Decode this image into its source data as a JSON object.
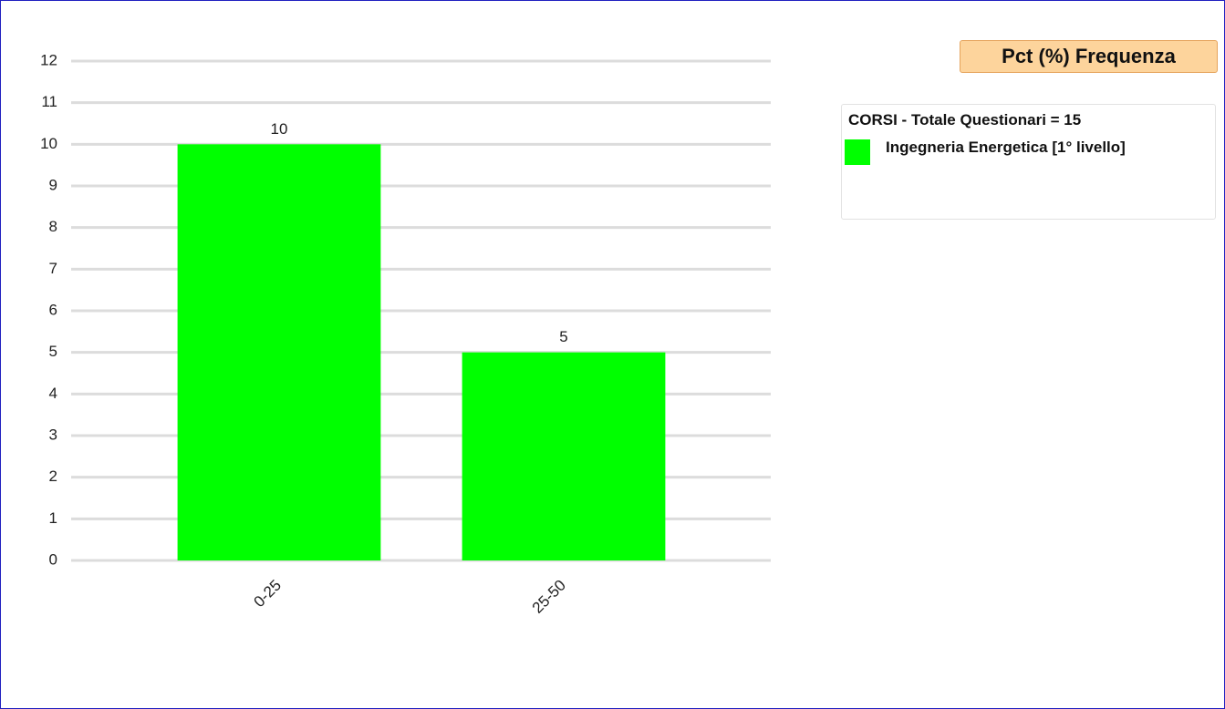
{
  "chart_data": {
    "type": "bar",
    "title": "Pct (%) Frequenza",
    "legend_title": "CORSI - Totale Questionari = 15",
    "categories": [
      "0-25",
      "25-50"
    ],
    "series": [
      {
        "name": "Ingegneria Energetica [1° livello]",
        "color": "#00ff00",
        "values": [
          10,
          5
        ]
      }
    ],
    "ylim": [
      0,
      12
    ],
    "yticks": [
      0,
      1,
      2,
      3,
      4,
      5,
      6,
      7,
      8,
      9,
      10,
      11,
      12
    ],
    "grid": true,
    "legend_position": "right"
  }
}
